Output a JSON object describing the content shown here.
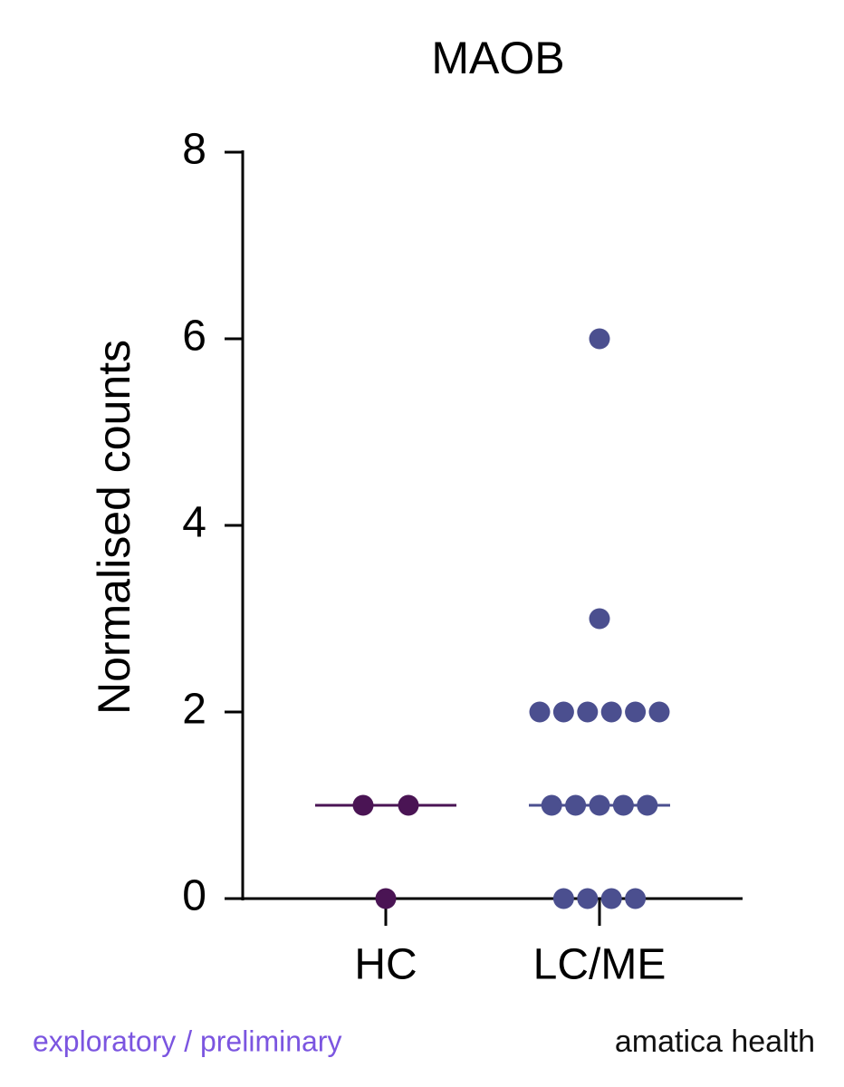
{
  "chart_data": {
    "type": "dotplot",
    "title": "MAOB",
    "y_label": "Normalised counts",
    "categories": [
      "HC",
      "LC/ME"
    ],
    "values": [
      [
        1,
        1,
        0
      ],
      [
        6,
        3,
        2,
        2,
        2,
        2,
        2,
        2,
        1,
        1,
        1,
        1,
        1,
        0,
        0,
        0,
        0
      ]
    ],
    "medians": [
      1,
      1
    ],
    "colors": [
      "#4a1454",
      "#4b4f8f"
    ],
    "ylim": [
      0,
      8
    ],
    "yticks": [
      0,
      2,
      4,
      6,
      8
    ],
    "notes": [
      "exploratory / preliminary",
      "amatica health"
    ],
    "note_colors": [
      "#7b55e0",
      "#111111"
    ]
  }
}
